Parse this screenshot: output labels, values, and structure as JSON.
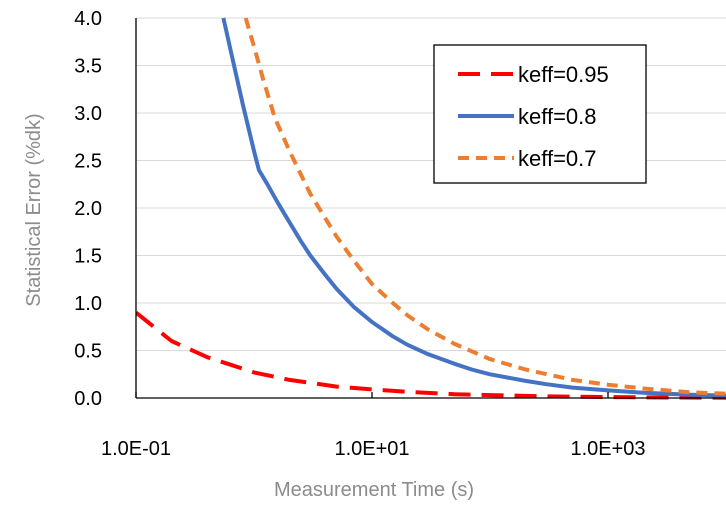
{
  "chart_data": {
    "type": "line",
    "title": "",
    "xlabel": "Measurement Time (s)",
    "ylabel": "Statistical Error (%dk)",
    "x_scale": "log",
    "xlim": [
      0.1,
      10000
    ],
    "ylim": [
      0,
      4.0
    ],
    "grid": "horizontal",
    "legend_position": "top-right",
    "x_ticks": [
      {
        "value": 0.1,
        "label": "1.0E-01"
      },
      {
        "value": 10,
        "label": "1.0E+01"
      },
      {
        "value": 1000,
        "label": "1.0E+03"
      }
    ],
    "y_ticks": [
      {
        "value": 0.0,
        "label": "0.0"
      },
      {
        "value": 0.5,
        "label": "0.5"
      },
      {
        "value": 1.0,
        "label": "1.0"
      },
      {
        "value": 1.5,
        "label": "1.5"
      },
      {
        "value": 2.0,
        "label": "2.0"
      },
      {
        "value": 2.5,
        "label": "2.5"
      },
      {
        "value": 3.0,
        "label": "3.0"
      },
      {
        "value": 3.5,
        "label": "3.5"
      },
      {
        "value": 4.0,
        "label": "4.0"
      }
    ],
    "series": [
      {
        "name": "keff=0.95",
        "color": "#ff0000",
        "style": "long-dash",
        "x": [
          0.1,
          0.2,
          0.4,
          0.6,
          1,
          2,
          3,
          5,
          10,
          20,
          50,
          100,
          300,
          1000,
          3000,
          10000
        ],
        "y": [
          0.9,
          0.6,
          0.43,
          0.36,
          0.27,
          0.19,
          0.16,
          0.12,
          0.09,
          0.065,
          0.04,
          0.03,
          0.017,
          0.009,
          0.005,
          0.003
        ]
      },
      {
        "name": "keff=0.8",
        "color": "#4472c4",
        "style": "solid",
        "x": [
          0.55,
          0.65,
          0.8,
          1.0,
          1.1,
          1.3,
          1.6,
          2,
          2.5,
          3,
          4,
          5,
          7,
          10,
          15,
          20,
          30,
          50,
          70,
          100,
          200,
          300,
          500,
          1000,
          2000,
          5000,
          10000
        ],
        "y": [
          4.0,
          3.6,
          3.1,
          2.6,
          2.4,
          2.25,
          2.05,
          1.85,
          1.65,
          1.5,
          1.3,
          1.15,
          0.96,
          0.8,
          0.65,
          0.56,
          0.46,
          0.36,
          0.3,
          0.25,
          0.18,
          0.145,
          0.11,
          0.08,
          0.055,
          0.035,
          0.025
        ]
      },
      {
        "name": "keff=0.7",
        "color": "#ed7d31",
        "style": "short-dash",
        "x": [
          0.85,
          1.0,
          1.2,
          1.5,
          2,
          3,
          5,
          7,
          10,
          15,
          20,
          30,
          50,
          100,
          200,
          500,
          1000,
          2000,
          5000,
          10000
        ],
        "y": [
          4.0,
          3.7,
          3.35,
          2.95,
          2.6,
          2.15,
          1.7,
          1.45,
          1.2,
          1.0,
          0.87,
          0.72,
          0.57,
          0.41,
          0.3,
          0.19,
          0.14,
          0.1,
          0.06,
          0.045
        ]
      }
    ]
  }
}
